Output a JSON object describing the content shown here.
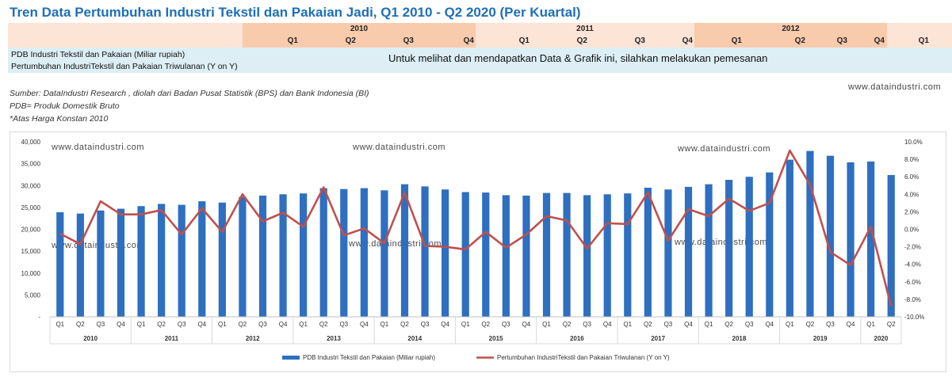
{
  "title": "Tren Data Pertumbuhan Industri Tekstil dan Pakaian Jadi, Q1 2010 - Q2 2020 (Per Kuartal)",
  "table": {
    "years": [
      "2010",
      "2011",
      "2012"
    ],
    "quarters": [
      "Q1",
      "Q2",
      "Q3",
      "Q4",
      "Q1",
      "Q2",
      "Q3",
      "Q4",
      "Q1",
      "Q2",
      "Q3",
      "Q4",
      "Q1"
    ],
    "row1_label": "PDB Industri Tekstil dan Pakaian (Miliar rupiah)",
    "row2_label": "Pertumbuhan IndustriTekstil dan Pakaian Triwulanan (Y on Y)",
    "notice": "Untuk melihat dan mendapatkan Data & Grafik ini, silahkan melakukan pemesanan"
  },
  "source": {
    "line1": "Sumber: DataIndustri Research , diolah dari Badan Pusat Statistik (BPS) dan Bank Indonesia (BI)",
    "line2": "PDB= Produk Domestik Bruto",
    "line3": "*Atas Harga Konstan 2010"
  },
  "website": "www.dataindustri.com",
  "colors": {
    "title": "#1f6fb5",
    "bar": "#2e6fc0",
    "line": "#c0504d",
    "peach": "#f8cbad",
    "light_peach": "#fce4d6",
    "data_row": "#ddeef5"
  },
  "chart_data": {
    "type": "bar",
    "categories_quarter": [
      "Q1",
      "Q2",
      "Q3",
      "Q4",
      "Q1",
      "Q2",
      "Q3",
      "Q4",
      "Q1",
      "Q2",
      "Q3",
      "Q4",
      "Q1",
      "Q2",
      "Q3",
      "Q4",
      "Q1",
      "Q2",
      "Q3",
      "Q4",
      "Q1",
      "Q2",
      "Q3",
      "Q4",
      "Q1",
      "Q2",
      "Q3",
      "Q4",
      "Q1",
      "Q2",
      "Q3",
      "Q4",
      "Q1",
      "Q2",
      "Q3",
      "Q4",
      "Q1",
      "Q2",
      "Q3",
      "Q4",
      "Q1",
      "Q2"
    ],
    "year_groups": [
      {
        "year": "2010",
        "count": 4
      },
      {
        "year": "2011",
        "count": 4
      },
      {
        "year": "2012",
        "count": 4
      },
      {
        "year": "2013",
        "count": 4
      },
      {
        "year": "2014",
        "count": 4
      },
      {
        "year": "2015",
        "count": 4
      },
      {
        "year": "2016",
        "count": 4
      },
      {
        "year": "2017",
        "count": 4
      },
      {
        "year": "2018",
        "count": 4
      },
      {
        "year": "2019",
        "count": 4
      },
      {
        "year": "2020",
        "count": 2
      }
    ],
    "series": [
      {
        "name": "PDB Industri Tekstil dan Pakaian (Miliar rupiah)",
        "type": "bar",
        "axis": "left",
        "values": [
          23900,
          23600,
          24300,
          24700,
          25300,
          25800,
          25600,
          26400,
          26100,
          27400,
          27700,
          28000,
          28200,
          29400,
          29200,
          29400,
          28900,
          30300,
          29800,
          29100,
          28500,
          28400,
          27800,
          27700,
          28300,
          28300,
          27800,
          28000,
          28200,
          29500,
          29100,
          29700,
          30300,
          31300,
          32000,
          33000,
          35900,
          37900,
          36800,
          35300,
          35500,
          32400
        ]
      },
      {
        "name": "Pertumbuhan IndustriTekstil dan Pakaian Triwulanan (Y on Y)",
        "type": "line",
        "axis": "right",
        "values": [
          -0.5,
          -1.7,
          3.2,
          1.7,
          1.7,
          2.2,
          -0.6,
          2.4,
          -0.3,
          4.0,
          0.9,
          1.9,
          0.3,
          4.8,
          -0.7,
          0.1,
          -1.6,
          4.2,
          -1.9,
          -2.0,
          -2.3,
          -0.3,
          -2.1,
          -0.6,
          1.5,
          1.0,
          -2.2,
          0.7,
          0.6,
          4.2,
          -1.3,
          2.3,
          1.5,
          3.5,
          2.1,
          3.0,
          9.0,
          5.1,
          -2.6,
          -4.1,
          0.3,
          -8.8
        ]
      }
    ],
    "y_left": {
      "min": 0,
      "max": 40000,
      "ticks": [
        "-",
        "5,000",
        "10,000",
        "15,000",
        "20,000",
        "25,000",
        "30,000",
        "35,000",
        "40,000"
      ]
    },
    "y_right": {
      "min": -10,
      "max": 10,
      "ticks": [
        "-10.0%",
        "-8.0%",
        "-6.0%",
        "-4.0%",
        "-2.0%",
        "0.0%",
        "2.0%",
        "4.0%",
        "6.0%",
        "8.0%",
        "10.0%"
      ]
    },
    "legend": [
      "PDB Industri Tekstil dan Pakaian (Miliar rupiah)",
      "Pertumbuhan IndustriTekstil dan Pakaian Triwulanan (Y on Y)"
    ],
    "legend_position": "bottom",
    "watermarks": [
      "www.dataindustri.com",
      "www.dataindustri.com",
      "www.dataindustri.com",
      "www.dataindustri.com",
      "www.dataindustri.com",
      "www.dataindustri.com"
    ]
  }
}
